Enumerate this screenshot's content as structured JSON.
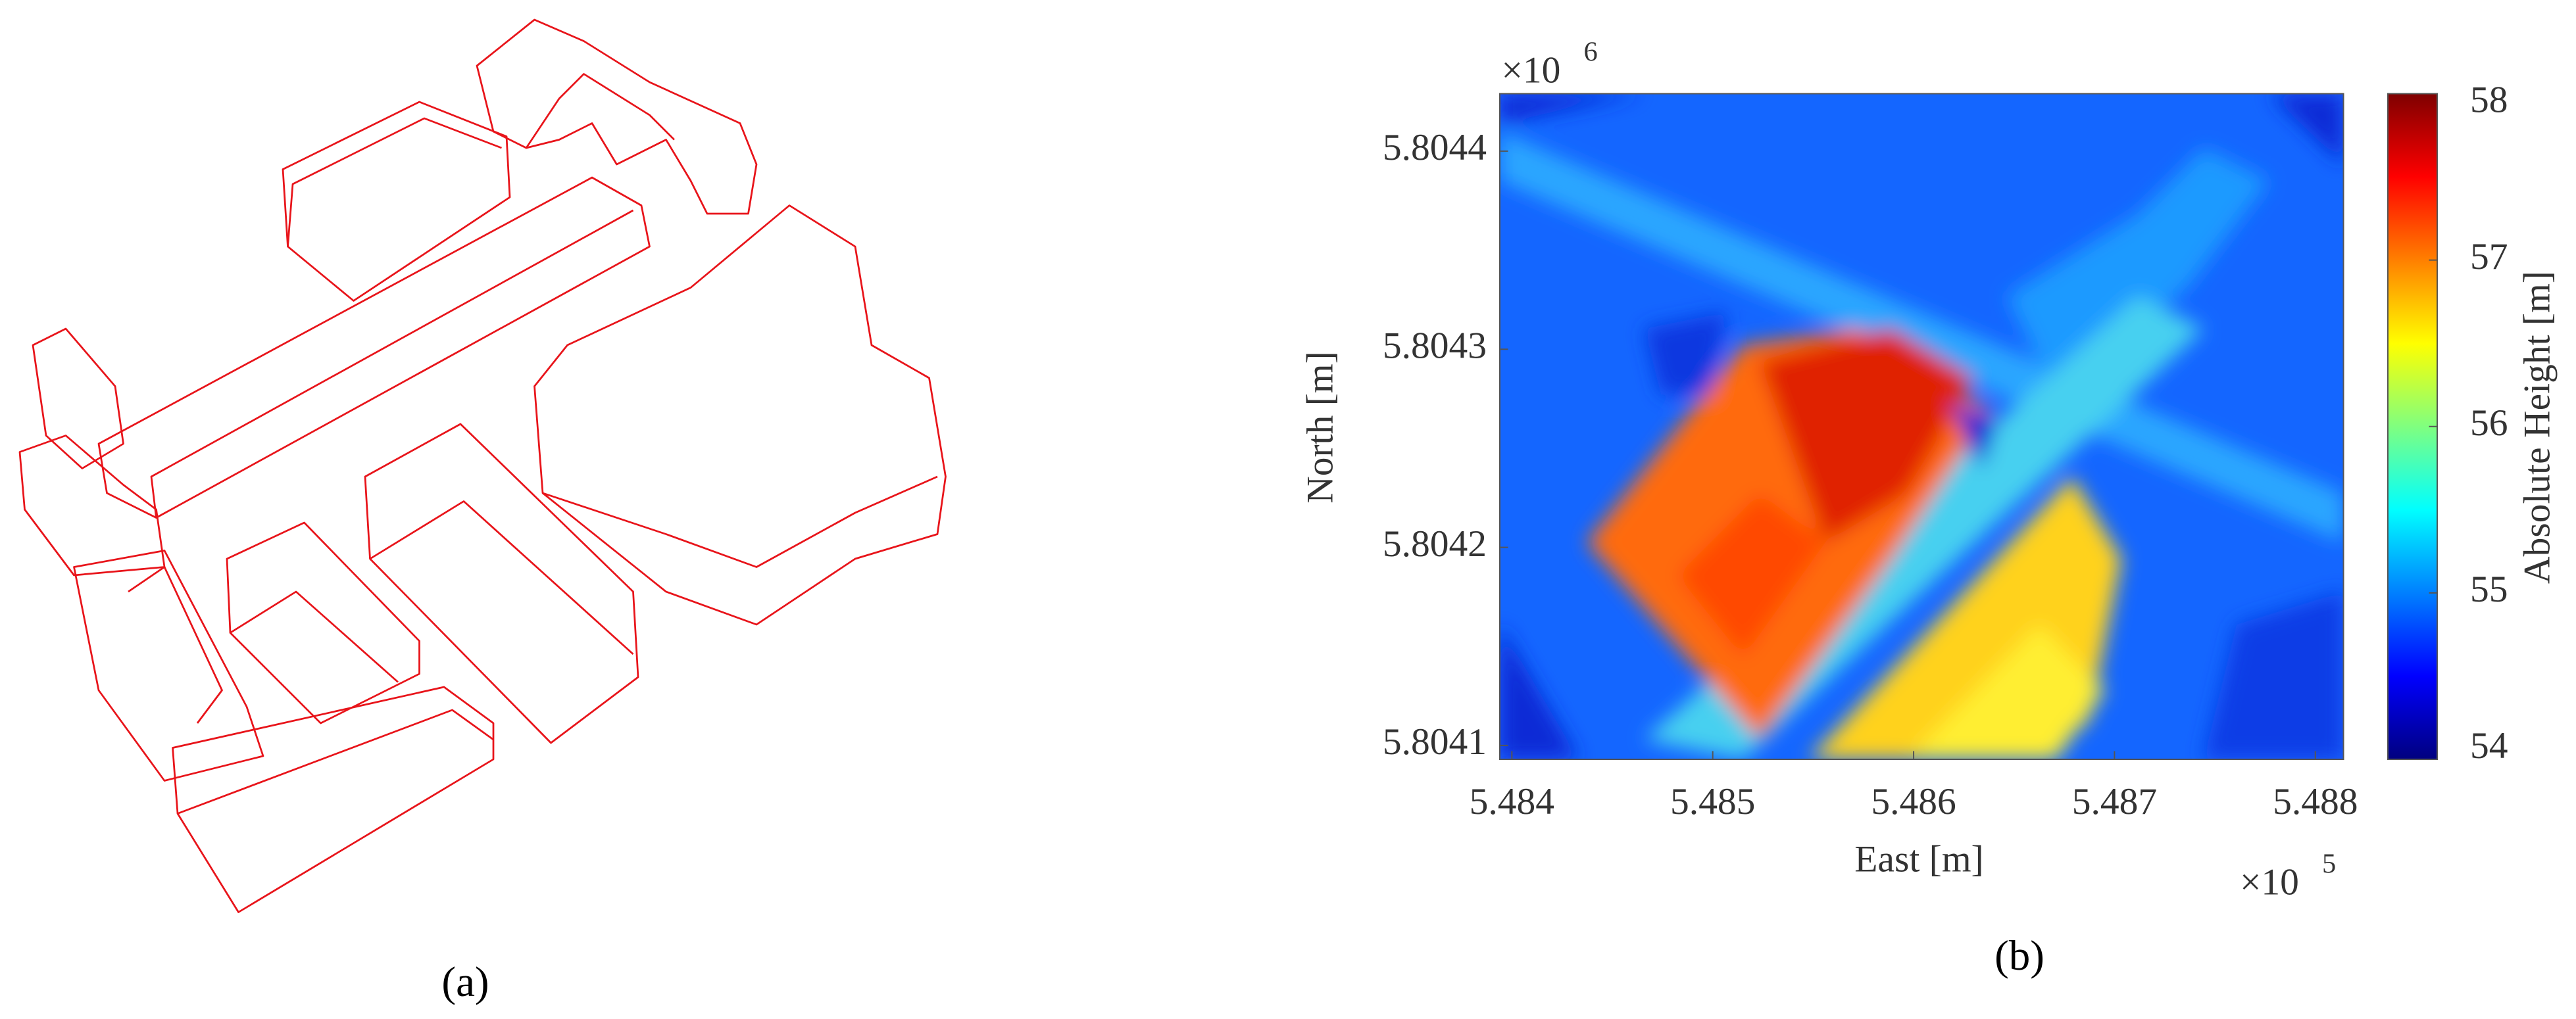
{
  "panel_labels": [
    "(a)",
    "(b)"
  ],
  "chart_data": {
    "type": "heatmap",
    "xlabel": "East [m]",
    "ylabel": "North [m]",
    "xlim": [
      5.48394,
      5.48814
    ],
    "xticks": [
      5.484,
      5.485,
      5.486,
      5.487,
      5.488
    ],
    "x_multiplier": "×10",
    "x_exponent": 5,
    "ylim": [
      5.804093,
      5.804429
    ],
    "yticks": [
      5.8041,
      5.8042,
      5.8043,
      5.8044
    ],
    "y_multiplier": "×10",
    "y_exponent": 6,
    "colorbar_label": "Absolute Height [m]",
    "clim": [
      54,
      58
    ],
    "cticks": [
      54,
      55,
      56,
      57,
      58
    ],
    "colormap": "jet"
  }
}
